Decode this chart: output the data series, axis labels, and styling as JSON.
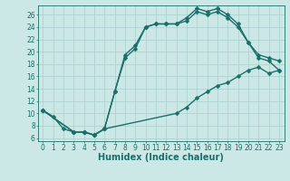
{
  "xlabel": "Humidex (Indice chaleur)",
  "bg_color": "#cce8e6",
  "grid_color": "#aacece",
  "line_color": "#1a7068",
  "xlim": [
    -0.5,
    23.5
  ],
  "ylim": [
    5.5,
    27.5
  ],
  "yticks": [
    6,
    8,
    10,
    12,
    14,
    16,
    18,
    20,
    22,
    24,
    26
  ],
  "xticks": [
    0,
    1,
    2,
    3,
    4,
    5,
    6,
    7,
    8,
    9,
    10,
    11,
    12,
    13,
    14,
    15,
    16,
    17,
    18,
    19,
    20,
    21,
    22,
    23
  ],
  "line1_x": [
    0,
    1,
    2,
    3,
    4,
    5,
    6,
    7,
    8,
    9,
    10,
    11,
    12,
    13,
    14,
    15,
    16,
    17,
    18,
    19,
    20,
    21,
    22,
    23
  ],
  "line1_y": [
    10.5,
    9.5,
    7.5,
    7.0,
    7.0,
    6.5,
    7.5,
    13.5,
    19.5,
    21.0,
    24.0,
    24.5,
    24.5,
    24.5,
    25.5,
    27.0,
    26.5,
    27.0,
    26.0,
    24.5,
    21.5,
    19.0,
    18.5,
    17.0
  ],
  "line2_x": [
    0,
    3,
    4,
    5,
    6,
    7,
    8,
    9,
    10,
    11,
    12,
    13,
    14,
    15,
    16,
    17,
    18,
    19,
    20,
    21,
    22,
    23
  ],
  "line2_y": [
    10.5,
    7.0,
    7.0,
    6.5,
    7.5,
    13.5,
    19.0,
    20.5,
    24.0,
    24.5,
    24.5,
    24.5,
    25.0,
    26.5,
    26.0,
    26.5,
    25.5,
    24.0,
    21.5,
    19.5,
    19.0,
    18.5
  ],
  "line3_x": [
    0,
    3,
    4,
    5,
    6,
    13,
    14,
    15,
    16,
    17,
    18,
    19,
    20,
    21,
    22,
    23
  ],
  "line3_y": [
    10.5,
    7.0,
    7.0,
    6.5,
    7.5,
    10.0,
    11.0,
    12.5,
    13.5,
    14.5,
    15.0,
    16.0,
    17.0,
    17.5,
    16.5,
    17.0
  ],
  "marker_size": 2.5,
  "line_width": 1.0,
  "font_size_label": 7,
  "font_size_tick": 5.5
}
